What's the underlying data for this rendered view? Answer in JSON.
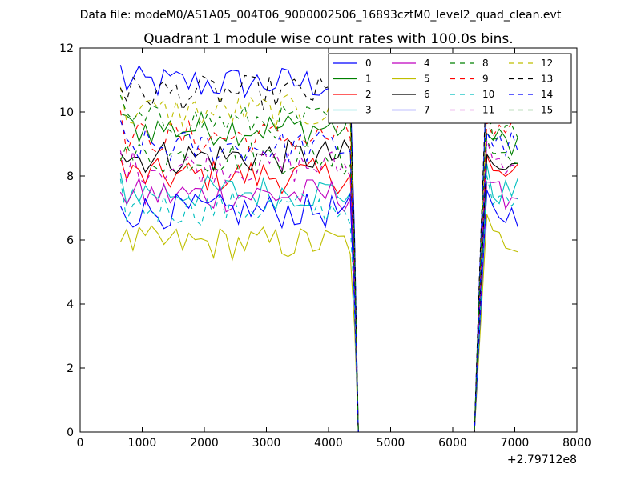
{
  "chart_data": {
    "type": "line",
    "suptitle": "Data file: modeM0/AS1A05_004T06_9000002506_16893cztM0_level2_quad_clean.evt",
    "title": "Quadrant 1 module wise count rates with 100.0s bins.",
    "xlabel": "",
    "ylabel": "",
    "x_offset_label": "+2.79712e8",
    "xlim": [
      0,
      8000
    ],
    "ylim": [
      0,
      12
    ],
    "xticks": [
      0,
      1000,
      2000,
      3000,
      4000,
      5000,
      6000,
      7000,
      8000
    ],
    "yticks": [
      0,
      2,
      4,
      6,
      8,
      10,
      12
    ],
    "legend": "top-right",
    "legend_ncol": 4,
    "bin_start": 650,
    "bin_width": 100,
    "bins_before_gap": 38,
    "gap_zero_range": [
      4500,
      6300
    ],
    "bins_after_gap": 6,
    "series": [
      {
        "name": "0",
        "color": "#0000ff",
        "dash": "solid",
        "pre": 10.9,
        "post": 10.5
      },
      {
        "name": "1",
        "color": "#008000",
        "dash": "solid",
        "pre": 9.5,
        "post": 9.1
      },
      {
        "name": "2",
        "color": "#ff0000",
        "dash": "solid",
        "pre": 8.0,
        "post": 8.0
      },
      {
        "name": "3",
        "color": "#00bfbf",
        "dash": "solid",
        "pre": 7.5,
        "post": 7.5
      },
      {
        "name": "4",
        "color": "#bf00bf",
        "dash": "solid",
        "pre": 7.4,
        "post": 7.4
      },
      {
        "name": "5",
        "color": "#bfbf00",
        "dash": "solid",
        "pre": 5.9,
        "post": 6.0
      },
      {
        "name": "6",
        "color": "#000000",
        "dash": "solid",
        "pre": 8.6,
        "post": 8.2
      },
      {
        "name": "7",
        "color": "#0000ff",
        "dash": "solid",
        "pre": 6.9,
        "post": 6.8
      },
      {
        "name": "8",
        "color": "#008000",
        "dash": "dashed",
        "pre": 8.6,
        "post": 8.8
      },
      {
        "name": "9",
        "color": "#ff0000",
        "dash": "dashed",
        "pre": 9.2,
        "post": 9.3
      },
      {
        "name": "10",
        "color": "#00bfbf",
        "dash": "dashed",
        "pre": 7.0,
        "post": 7.1
      },
      {
        "name": "11",
        "color": "#bf00bf",
        "dash": "dashed",
        "pre": 8.3,
        "post": 8.5
      },
      {
        "name": "12",
        "color": "#bfbf00",
        "dash": "dashed",
        "pre": 10.0,
        "post": 9.9
      },
      {
        "name": "13",
        "color": "#000000",
        "dash": "dashed",
        "pre": 10.6,
        "post": 10.8
      },
      {
        "name": "14",
        "color": "#0000ff",
        "dash": "dashed",
        "pre": 8.9,
        "post": 9.0
      },
      {
        "name": "15",
        "color": "#008000",
        "dash": "dashed",
        "pre": 9.7,
        "post": 9.6
      }
    ]
  }
}
